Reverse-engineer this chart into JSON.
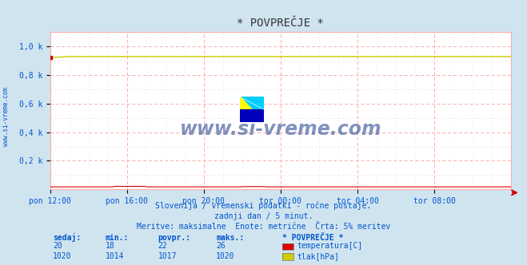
{
  "title": "* POVPREČJE *",
  "bg_color": "#d0e4f0",
  "plot_bg_color": "#ffffff",
  "grid_color_major": "#ffaaaa",
  "grid_color_minor": "#ffd0d0",
  "x_labels": [
    "pon 12:00",
    "pon 16:00",
    "pon 20:00",
    "tor 00:00",
    "tor 04:00",
    "tor 08:00"
  ],
  "y_labels": [
    "0,2 k",
    "0,4 k",
    "0,6 k",
    "0,8 k",
    "1,0 k"
  ],
  "y_ticks": [
    0.2,
    0.4,
    0.6,
    0.8,
    1.0
  ],
  "ylim_max": 1.1,
  "n_points": 288,
  "temp_value": 20,
  "temp_min": 18,
  "temp_avg": 22,
  "temp_max": 26,
  "temp_color": "#dd0000",
  "pressure_value": 1020,
  "pressure_min": 1014,
  "pressure_avg": 1017,
  "pressure_max": 1020,
  "pressure_color": "#cccc00",
  "data_max": 1100,
  "subtitle1": "Slovenija / vremenski podatki - ročne postaje.",
  "subtitle2": "zadnji dan / 5 minut.",
  "subtitle3": "Meritve: maksimalne  Enote: metrične  Črta: 5% meritev",
  "label_color": "#0055cc",
  "watermark": "www.si-vreme.com",
  "watermark_color": "#1a3a8a",
  "sidebar_text": "www.si-vreme.com",
  "sidebar_color": "#0055cc",
  "title_color": "#333333",
  "arrow_color": "#cc0000",
  "spine_color": "#aaaaaa"
}
